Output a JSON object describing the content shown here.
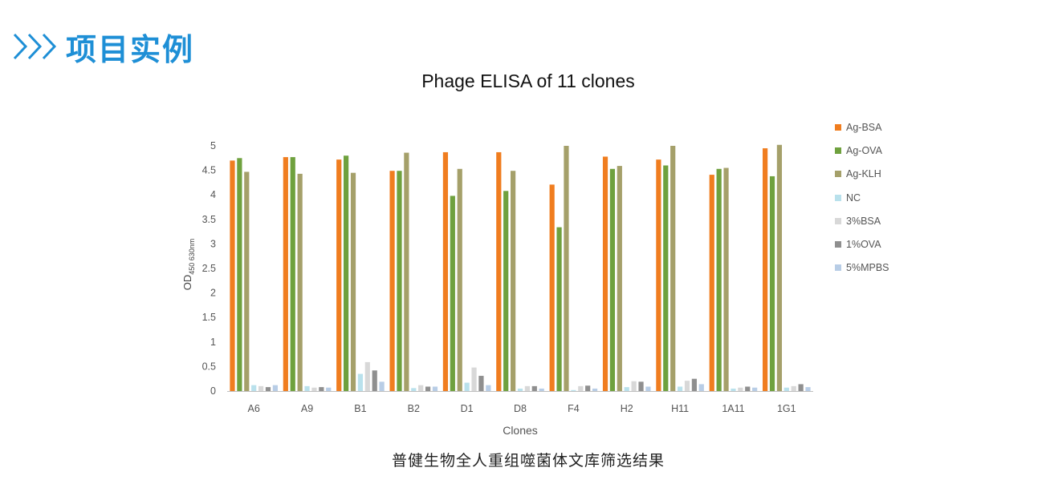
{
  "header": {
    "title": "项目实例",
    "icon": "triple-chevron-right-icon",
    "accent_color": "#1e8fd6"
  },
  "caption": "普健生物全人重组噬菌体文库筛选结果",
  "chart_data": {
    "type": "bar",
    "title": "Phage ELISA of 11 clones",
    "xlabel": "Clones",
    "ylabel": "OD",
    "ylabel_subscript": "450 630nm",
    "ylim": [
      0,
      5
    ],
    "yticks": [
      "0",
      "0.5",
      "1",
      "1.5",
      "2",
      "2.5",
      "3",
      "3.5",
      "4",
      "4.5",
      "5"
    ],
    "grid": false,
    "legend_position": "right",
    "categories": [
      "A6",
      "A9",
      "B1",
      "B2",
      "D1",
      "D8",
      "F4",
      "H2",
      "H11",
      "1A11",
      "1G1"
    ],
    "series": [
      {
        "name": "Ag-BSA",
        "color": "#f07d1f",
        "values": [
          4.7,
          4.77,
          4.72,
          4.49,
          4.87,
          4.87,
          4.21,
          4.78,
          4.72,
          4.41,
          4.95
        ]
      },
      {
        "name": "Ag-OVA",
        "color": "#6fa13e",
        "values": [
          4.75,
          4.77,
          4.8,
          4.49,
          3.98,
          4.08,
          3.34,
          4.53,
          4.6,
          4.53,
          4.38
        ]
      },
      {
        "name": "Ag-KLH",
        "color": "#a5a06a",
        "values": [
          4.47,
          4.43,
          4.45,
          4.86,
          4.53,
          4.49,
          5.0,
          4.59,
          5.0,
          4.55,
          5.02
        ]
      },
      {
        "name": "NC",
        "color": "#b9e1ec",
        "values": [
          0.12,
          0.1,
          0.35,
          0.06,
          0.17,
          0.05,
          0.02,
          0.08,
          0.09,
          0.05,
          0.07
        ]
      },
      {
        "name": "3%BSA",
        "color": "#d8d8d8",
        "values": [
          0.1,
          0.07,
          0.59,
          0.12,
          0.48,
          0.1,
          0.1,
          0.2,
          0.21,
          0.07,
          0.1
        ]
      },
      {
        "name": "1%OVA",
        "color": "#8f8f8f",
        "values": [
          0.08,
          0.08,
          0.42,
          0.09,
          0.31,
          0.1,
          0.11,
          0.19,
          0.25,
          0.09,
          0.14
        ]
      },
      {
        "name": "5%MPBS",
        "color": "#b8cde6",
        "values": [
          0.12,
          0.07,
          0.19,
          0.09,
          0.12,
          0.05,
          0.05,
          0.09,
          0.14,
          0.07,
          0.08
        ]
      }
    ]
  }
}
